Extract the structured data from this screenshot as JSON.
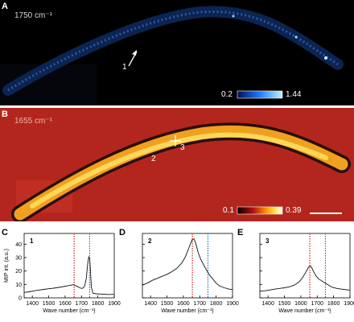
{
  "panels": {
    "A": {
      "letter": "A",
      "wavenumber_label": "1750 cm⁻¹",
      "colorbar": {
        "min": "0.2",
        "max": "1.44"
      },
      "marker": "1",
      "colors": {
        "background": "#000000",
        "signal": "#2f6fe0",
        "colorbar_low": "#00105a",
        "colorbar_high": "#bff4ff"
      }
    },
    "B": {
      "letter": "B",
      "wavenumber_label": "1655 cm⁻¹",
      "colorbar": {
        "min": "0.1",
        "max": "0.39"
      },
      "markers": [
        "2",
        "3"
      ],
      "colors": {
        "background": "#b3261e",
        "signal": "#ffcc33",
        "colorbar_low": "#000000",
        "colorbar_high": "#ffffff"
      }
    },
    "C": {
      "letter": "C",
      "label": "1"
    },
    "D": {
      "letter": "D",
      "label": "2"
    },
    "E": {
      "letter": "E",
      "label": "3"
    }
  },
  "spectra_axes": {
    "ylabel": "MIP int. (a.u.)",
    "xlabel": "Wave number (cm⁻¹)",
    "xticks": [
      "1400",
      "1500",
      "1600",
      "1700",
      "1800",
      "1900"
    ],
    "yticks": [
      "0",
      "10",
      "20",
      "30",
      "40"
    ],
    "markers": {
      "red_dotted_x": 1655,
      "blue_dotted_x": 1750,
      "red_color": "#d21f1f",
      "blue_color": "#1f6fb5"
    }
  },
  "chart_data": [
    {
      "type": "line",
      "panel": "C",
      "xlim": [
        1350,
        1900
      ],
      "ylim": [
        0,
        48
      ],
      "x": [
        1350,
        1380,
        1410,
        1440,
        1470,
        1500,
        1530,
        1560,
        1590,
        1620,
        1650,
        1670,
        1690,
        1700,
        1710,
        1720,
        1730,
        1735,
        1740,
        1745,
        1750,
        1755,
        1760,
        1770,
        1790,
        1820,
        1860,
        1900
      ],
      "y": [
        4,
        4.5,
        5.2,
        5.8,
        6.3,
        6.8,
        7.2,
        7.8,
        8.4,
        9.1,
        9.8,
        8.8,
        7.5,
        7.0,
        7.3,
        9.0,
        15.0,
        22.0,
        27.5,
        30.5,
        29.0,
        20.0,
        8.0,
        3.5,
        3.0,
        2.8,
        2.5,
        2.6
      ]
    },
    {
      "type": "line",
      "panel": "D",
      "xlim": [
        1350,
        1900
      ],
      "ylim": [
        0,
        48
      ],
      "x": [
        1350,
        1380,
        1410,
        1440,
        1470,
        1500,
        1530,
        1560,
        1590,
        1610,
        1630,
        1645,
        1655,
        1665,
        1675,
        1690,
        1705,
        1720,
        1740,
        1760,
        1780,
        1800,
        1820,
        1850,
        1880,
        1900
      ],
      "y": [
        9.5,
        11,
        13,
        14.5,
        16,
        17.5,
        19.5,
        22,
        26,
        30,
        36,
        41,
        43.5,
        44,
        41,
        34,
        29,
        25.5,
        21,
        17,
        14,
        11,
        9,
        7.5,
        6.5,
        6.2
      ]
    },
    {
      "type": "line",
      "panel": "E",
      "xlim": [
        1350,
        1900
      ],
      "ylim": [
        0,
        48
      ],
      "x": [
        1350,
        1380,
        1410,
        1440,
        1470,
        1500,
        1530,
        1560,
        1590,
        1610,
        1630,
        1645,
        1655,
        1665,
        1680,
        1695,
        1710,
        1730,
        1750,
        1770,
        1790,
        1820,
        1850,
        1880,
        1900
      ],
      "y": [
        5,
        5.3,
        5.8,
        6.5,
        7,
        7.5,
        8.2,
        9.5,
        12,
        15,
        19,
        22.5,
        24,
        23,
        19,
        16,
        14,
        12.5,
        11,
        9.5,
        8,
        7,
        6.5,
        6,
        5.8
      ]
    }
  ]
}
